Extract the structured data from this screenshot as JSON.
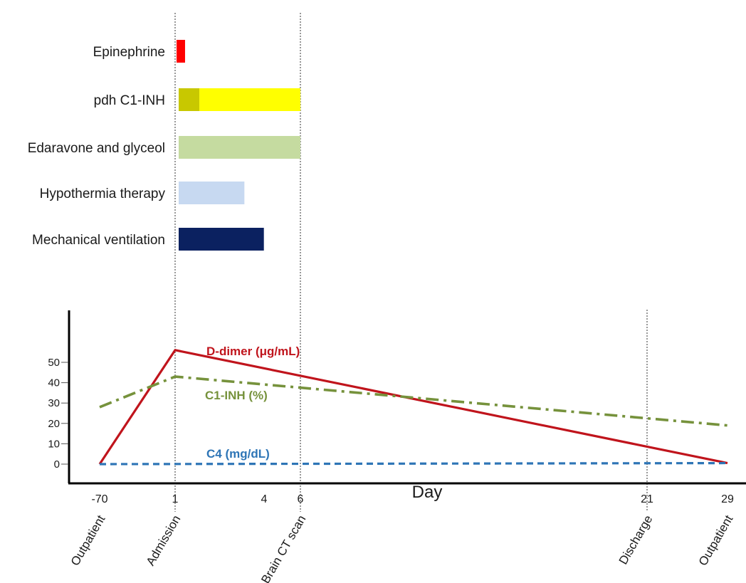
{
  "chart_data": [
    {
      "type": "gantt",
      "title": "",
      "rows": [
        {
          "label": "Epinephrine",
          "segments": [
            {
              "start": 1.0,
              "end": 1.35,
              "color": "#ff0000"
            }
          ]
        },
        {
          "label": "pdh C1-INH",
          "segments": [
            {
              "start": 1.0,
              "end": 1.85,
              "color": "#c8c800"
            },
            {
              "start": 1.85,
              "end": 6.0,
              "color": "#ffff00"
            }
          ]
        },
        {
          "label": "Edaravone and glyceol",
          "segments": [
            {
              "start": 1.0,
              "end": 6.0,
              "color": "#c5dba0"
            }
          ]
        },
        {
          "label": "Hypothermia therapy",
          "segments": [
            {
              "start": 1.0,
              "end": 3.7,
              "color": "#c7d9f1"
            }
          ]
        },
        {
          "label": "Mechanical ventilation",
          "segments": [
            {
              "start": 1.0,
              "end": 4.5,
              "color": "#0b2160"
            }
          ]
        }
      ]
    },
    {
      "type": "line",
      "xlabel": "Day",
      "ylabel": "",
      "x_ticks": [
        {
          "day": "-70",
          "event": "Outpatient"
        },
        {
          "day": "1",
          "event": "Admission"
        },
        {
          "day": "4",
          "event": ""
        },
        {
          "day": "6",
          "event": "Brain CT scan"
        },
        {
          "day": "21",
          "event": "Discharge"
        },
        {
          "day": "29",
          "event": "Outpatient"
        }
      ],
      "yticks": [
        "0",
        "10",
        "20",
        "30",
        "40",
        "50"
      ],
      "ylim": [
        0,
        55
      ],
      "grid": false,
      "series": [
        {
          "name": "D-dimer (μg/mL)",
          "color": "#c0141c",
          "style": "solid",
          "points": [
            {
              "x": "-70",
              "y": 0
            },
            {
              "x": "1",
              "y": 56
            },
            {
              "x": "29",
              "y": 0.5
            }
          ]
        },
        {
          "name": "C1-INH (%)",
          "color": "#76923c",
          "style": "dash-dot",
          "points": [
            {
              "x": "-70",
              "y": 28
            },
            {
              "x": "1",
              "y": 43
            },
            {
              "x": "29",
              "y": 19
            }
          ]
        },
        {
          "name": "C4 (mg/dL)",
          "color": "#2e75b6",
          "style": "dashed",
          "points": [
            {
              "x": "-70",
              "y": 0
            },
            {
              "x": "29",
              "y": 0.5
            }
          ]
        }
      ]
    }
  ]
}
